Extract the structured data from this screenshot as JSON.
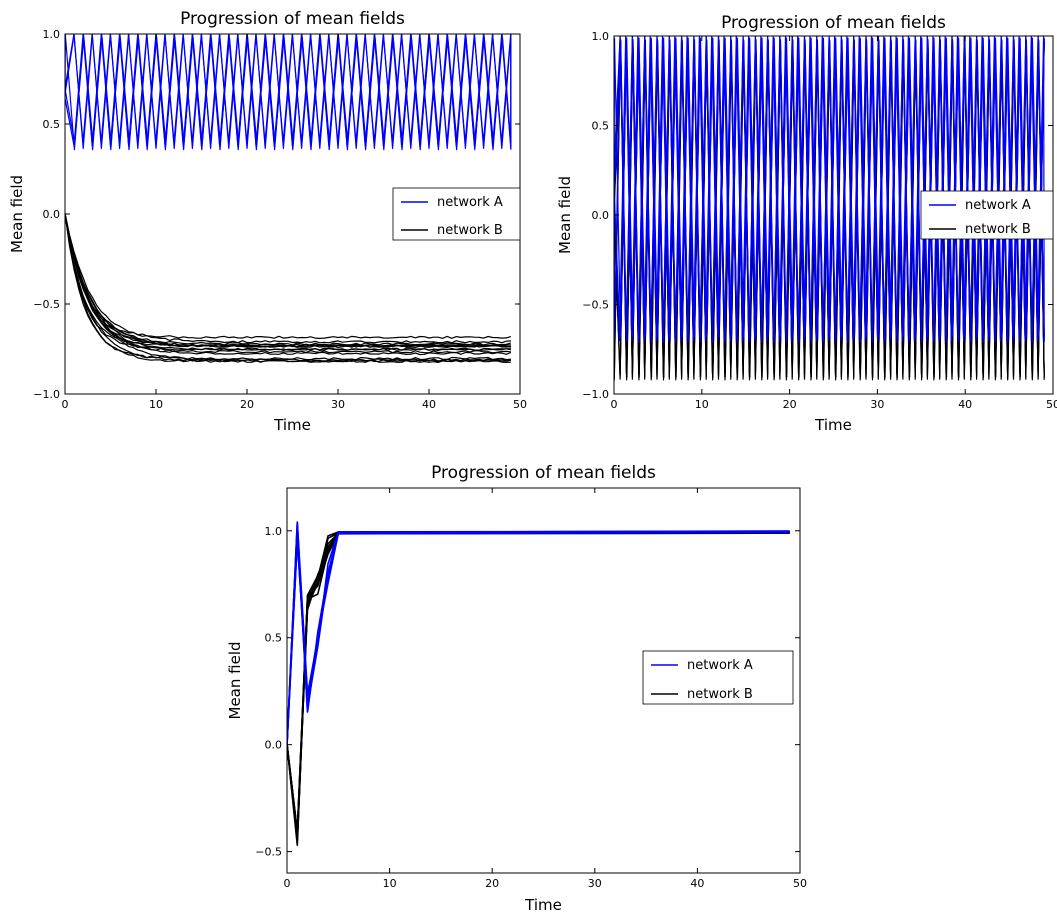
{
  "chart_data": [
    {
      "type": "line",
      "title": "Progression of mean fields",
      "xlabel": "Time",
      "ylabel": "Mean field",
      "xlim": [
        0,
        50
      ],
      "ylim": [
        -1.0,
        1.0
      ],
      "xticks": [
        "0",
        "10",
        "20",
        "30",
        "40",
        "50"
      ],
      "yticks": [
        "−1.0",
        "−0.5",
        "0.0",
        "0.5",
        "1.0"
      ],
      "legend": {
        "position": "right",
        "entries": [
          "network A",
          "network B"
        ]
      },
      "grid": false,
      "series": [
        {
          "name": "network A",
          "color": "#0000ff",
          "pattern": "oscillation",
          "min": 0.37,
          "max": 1.0,
          "period": 2,
          "trajectories": 5
        },
        {
          "name": "network B",
          "color": "#000000",
          "pattern": "decay",
          "start": 0.0,
          "final_range": [
            -0.82,
            -0.67
          ],
          "time_constant": 2.5,
          "trajectories": 15
        }
      ]
    },
    {
      "type": "line",
      "title": "Progression of mean fields",
      "xlabel": "Time",
      "ylabel": "Mean field",
      "xlim": [
        0,
        50
      ],
      "ylim": [
        -1.0,
        1.0
      ],
      "xticks": [
        "0",
        "10",
        "20",
        "30",
        "40",
        "50"
      ],
      "yticks": [
        "−1.0",
        "−0.5",
        "0.0",
        "0.5",
        "1.0"
      ],
      "legend": {
        "position": "right",
        "entries": [
          "network A",
          "network B"
        ]
      },
      "grid": false,
      "series": [
        {
          "name": "network A",
          "color": "#0000ff",
          "pattern": "oscillation",
          "min": -0.7,
          "max": 1.0,
          "period": 1.4,
          "trajectories": 6
        },
        {
          "name": "network B",
          "color": "#000000",
          "pattern": "oscillation",
          "min": -0.92,
          "max": 0.98,
          "period": 1.4,
          "trajectories": 8
        }
      ]
    },
    {
      "type": "line",
      "title": "Progression of mean fields",
      "xlabel": "Time",
      "ylabel": "Mean field",
      "xlim": [
        0,
        50
      ],
      "ylim": [
        -0.6,
        1.2
      ],
      "xticks": [
        "0",
        "10",
        "20",
        "30",
        "40",
        "50"
      ],
      "yticks": [
        "−0.5",
        "0.0",
        "0.5",
        "1.0"
      ],
      "legend": {
        "position": "right",
        "entries": [
          "network A",
          "network B"
        ]
      },
      "grid": false,
      "series": [
        {
          "name": "network A",
          "color": "#0000ff",
          "pattern": "converge",
          "points": [
            [
              0,
              0.0
            ],
            [
              1,
              1.0
            ],
            [
              2,
              0.2
            ],
            [
              3,
              0.5
            ],
            [
              4,
              0.8
            ],
            [
              5,
              0.99
            ],
            [
              49,
              0.995
            ]
          ],
          "trajectories": 6
        },
        {
          "name": "network B",
          "color": "#000000",
          "pattern": "converge",
          "points": [
            [
              0,
              0.0
            ],
            [
              1,
              -0.43
            ],
            [
              2,
              0.68
            ],
            [
              3,
              0.75
            ],
            [
              4,
              0.93
            ],
            [
              5,
              0.99
            ],
            [
              49,
              0.99
            ]
          ],
          "trajectories": 8
        }
      ]
    }
  ]
}
